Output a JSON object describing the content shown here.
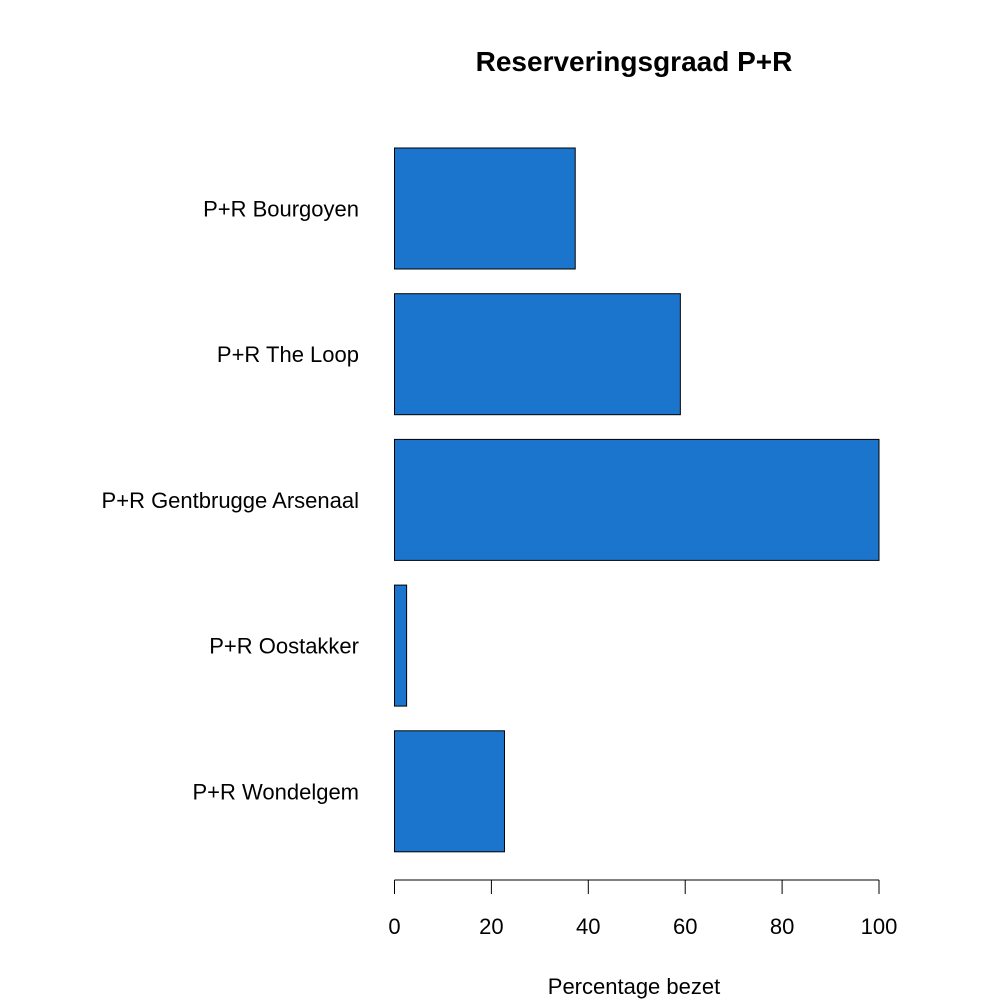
{
  "chart_data": {
    "type": "bar",
    "orientation": "horizontal",
    "title": "Reserveringsgraad P+R",
    "xlabel": "Percentage bezet",
    "ylabel": "",
    "xlim": [
      0,
      100
    ],
    "xticks": [
      0,
      20,
      40,
      60,
      80,
      100
    ],
    "categories": [
      "P+R Bourgoyen",
      "P+R The Loop",
      "P+R Gentbrugge Arsenaal",
      "P+R Oostakker",
      "P+R Wondelgem"
    ],
    "values": [
      37.3,
      59,
      100,
      2.5,
      22.7
    ],
    "grid": false,
    "legend": "none",
    "colors": {
      "bar_fill": "#1C75CD",
      "bar_stroke": "#000000",
      "axis": "#000000",
      "text": "#000000"
    }
  }
}
